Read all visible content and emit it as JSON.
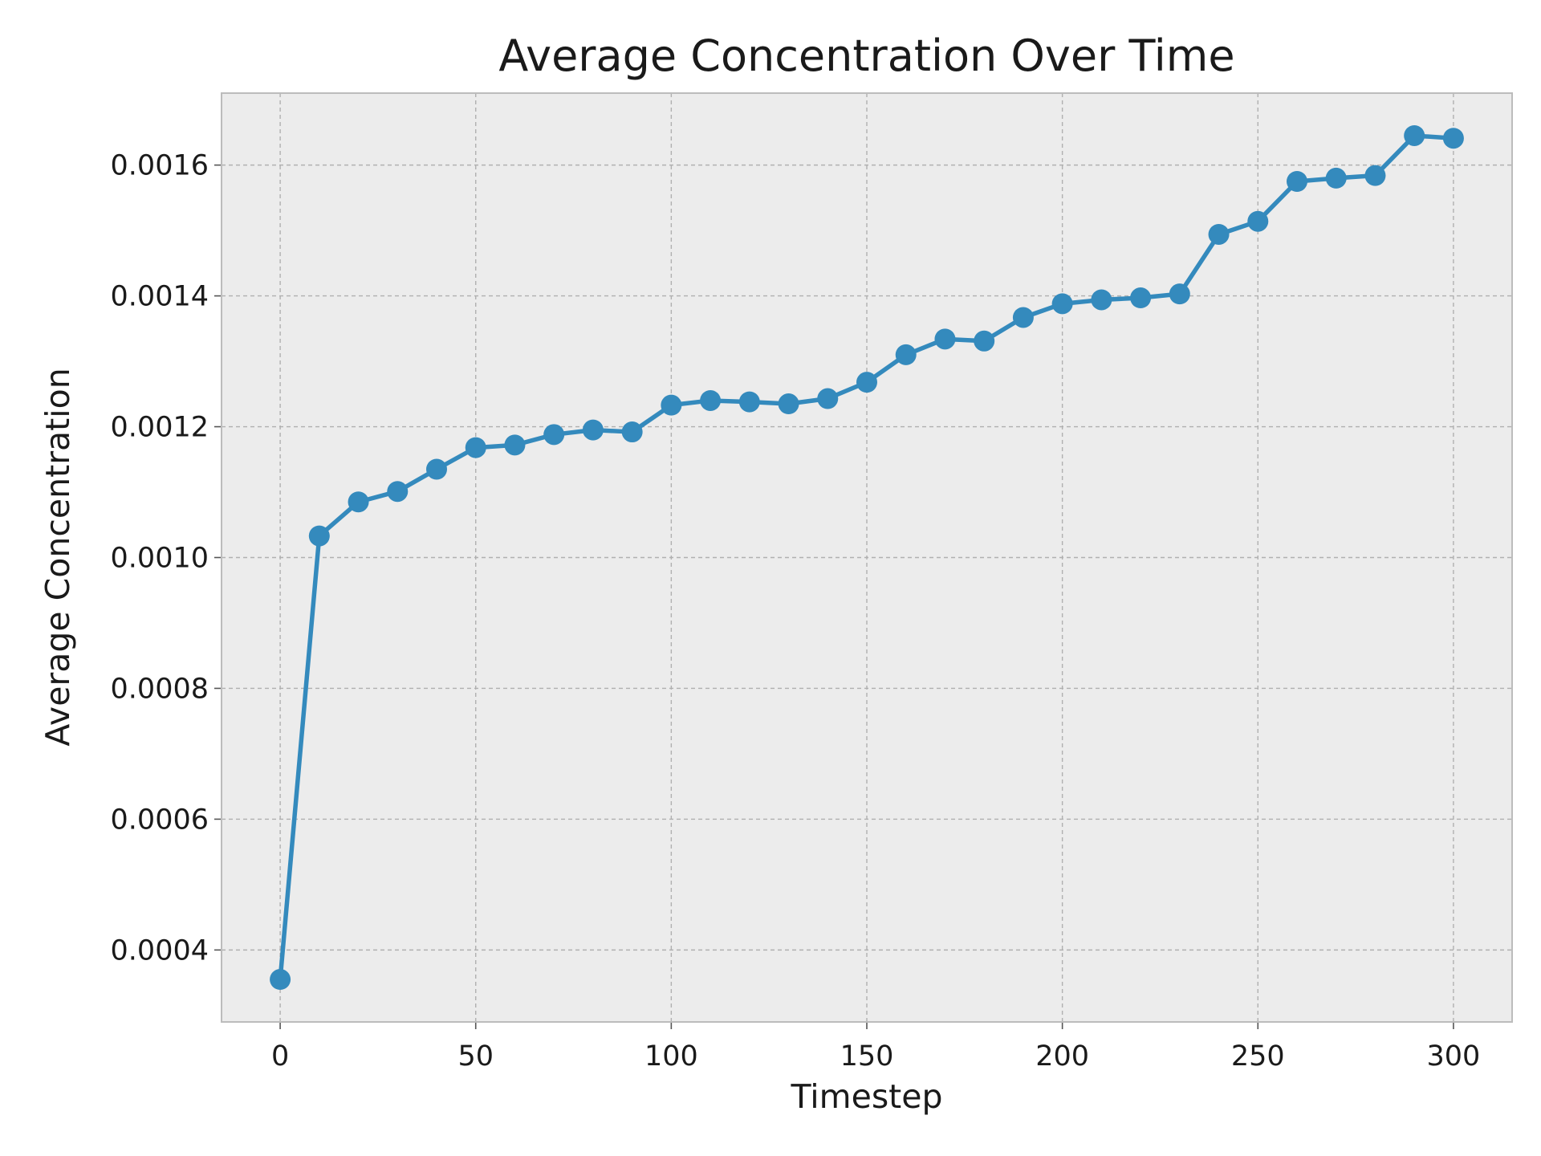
{
  "chart_data": {
    "type": "line",
    "title": "Average Concentration Over Time",
    "xlabel": "Timestep",
    "ylabel": "Average Concentration",
    "xlim": [
      -15,
      315
    ],
    "ylim": [
      0.00029,
      0.00171
    ],
    "x_ticks": [
      0,
      50,
      100,
      150,
      200,
      250,
      300
    ],
    "x_tick_labels": [
      "0",
      "50",
      "100",
      "150",
      "200",
      "250",
      "300"
    ],
    "y_ticks": [
      0.0004,
      0.0006,
      0.0008,
      0.001,
      0.0012,
      0.0014,
      0.0016
    ],
    "y_tick_labels": [
      "0.0004",
      "0.0006",
      "0.0008",
      "0.0010",
      "0.0012",
      "0.0014",
      "0.0016"
    ],
    "grid": true,
    "colors": {
      "series": "#348abd",
      "plot_bg": "#ececec",
      "spine": "#bcbcbc"
    },
    "series": [
      {
        "name": "Average Concentration",
        "marker": "circle",
        "x": [
          0,
          10,
          20,
          30,
          40,
          50,
          60,
          70,
          80,
          90,
          100,
          110,
          120,
          130,
          140,
          150,
          160,
          170,
          180,
          190,
          200,
          210,
          220,
          230,
          240,
          250,
          260,
          270,
          280,
          290,
          300
        ],
        "values": [
          0.000355,
          0.001033,
          0.001085,
          0.001101,
          0.001135,
          0.001168,
          0.001172,
          0.001188,
          0.001195,
          0.001192,
          0.001233,
          0.00124,
          0.001238,
          0.001235,
          0.001243,
          0.001268,
          0.00131,
          0.001334,
          0.001331,
          0.001367,
          0.001388,
          0.001394,
          0.001397,
          0.001403,
          0.001494,
          0.001514,
          0.001575,
          0.00158,
          0.001584,
          0.001645,
          0.001641
        ]
      }
    ]
  }
}
